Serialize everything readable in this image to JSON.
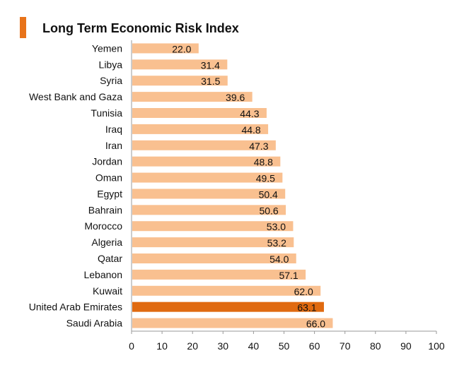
{
  "chart_data": {
    "type": "bar",
    "orientation": "horizontal",
    "title": "Long Term Economic Risk Index",
    "xlabel": "",
    "ylabel": "",
    "xlim": [
      0,
      100
    ],
    "x_ticks": [
      0,
      10,
      20,
      30,
      40,
      50,
      60,
      70,
      80,
      90,
      100
    ],
    "grid": false,
    "categories": [
      "Yemen",
      "Libya",
      "Syria",
      "West Bank and Gaza",
      "Tunisia",
      "Iraq",
      "Iran",
      "Jordan",
      "Oman",
      "Egypt",
      "Bahrain",
      "Morocco",
      "Algeria",
      "Qatar",
      "Lebanon",
      "Kuwait",
      "United Arab Emirates",
      "Saudi Arabia"
    ],
    "values": [
      22.0,
      31.4,
      31.5,
      39.6,
      44.3,
      44.8,
      47.3,
      48.8,
      49.5,
      50.4,
      50.6,
      53.0,
      53.2,
      54.0,
      57.1,
      62.0,
      63.1,
      66.0
    ],
    "value_labels": [
      "22.0",
      "31.4",
      "31.5",
      "39.6",
      "44.3",
      "44.8",
      "47.3",
      "48.8",
      "49.5",
      "50.4",
      "50.6",
      "53.0",
      "53.2",
      "54.0",
      "57.1",
      "62.0",
      "63.1",
      "66.0"
    ],
    "highlight": "United Arab Emirates",
    "colors": {
      "bar": "#f9c090",
      "highlight_bar": "#e06a10",
      "title_accent": "#e8731a",
      "axis": "#9a9a9a"
    }
  }
}
